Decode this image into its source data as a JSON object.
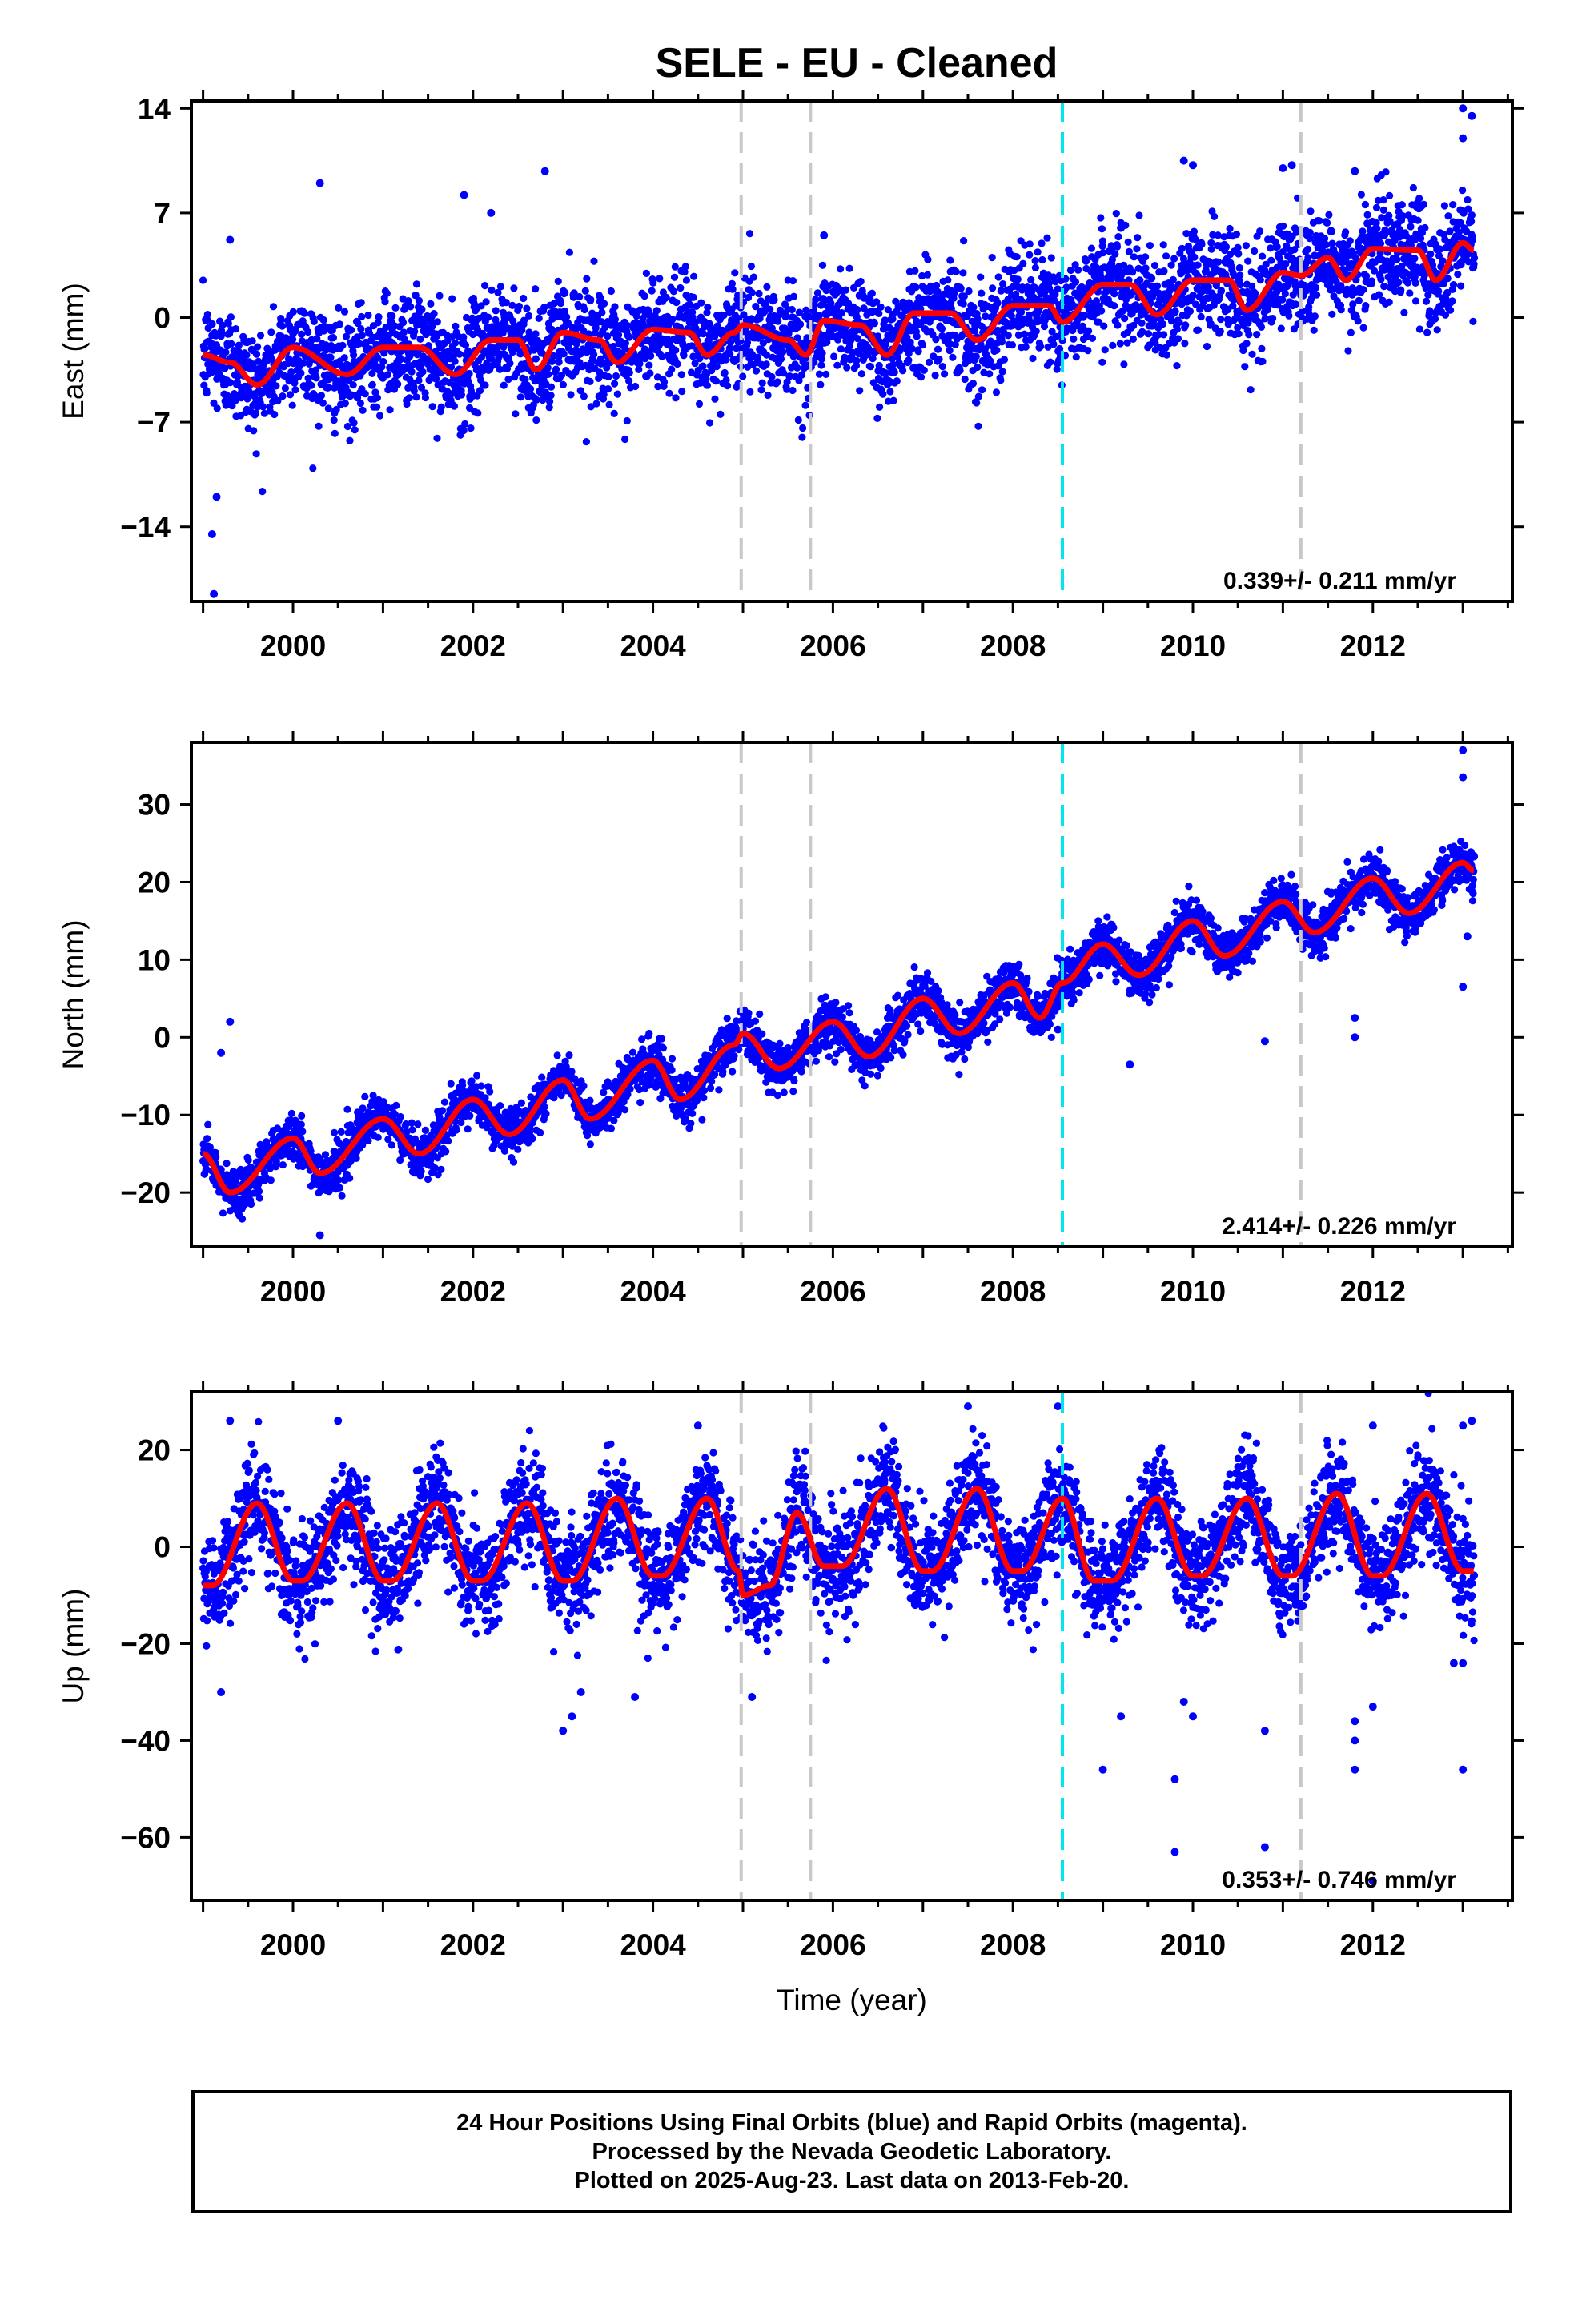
{
  "figure": {
    "title": "SELE  - EU - Cleaned",
    "x_axis_label": "Time (year)"
  },
  "footer": {
    "lines": [
      "24 Hour Positions Using Final Orbits (blue) and Rapid Orbits (magenta).",
      "Processed by the Nevada Geodetic Laboratory.",
      "Plotted on 2025-Aug-23. Last data on 2013-Feb-20."
    ]
  },
  "colors": {
    "data_points": "#0000ff",
    "model_fit": "#ff0000",
    "equipment_change": "#c8c8c8",
    "earthquake": "#00e5ee",
    "axes": "#000000"
  },
  "chart_data": [
    {
      "type": "scatter",
      "component": "east",
      "ylabel": "East (mm)",
      "ylim": [
        -19,
        14.5
      ],
      "yticks": [
        14,
        7,
        0,
        -7,
        -14
      ],
      "xlim": [
        1998.87,
        2013.55
      ],
      "xticks": [
        2000,
        2002,
        2004,
        2006,
        2008,
        2010,
        2012
      ],
      "rate_label": "0.339+/- 0.211 mm/yr",
      "rate": 0.339,
      "scatter_sd": 1.8,
      "anchors_x": [
        1999.0,
        1999.3,
        1999.6,
        2000.0,
        2000.6,
        2001.0,
        2001.4,
        2001.8,
        2002.2,
        2002.5,
        2002.7,
        2003.0,
        2003.4,
        2003.6,
        2004.0,
        2004.4,
        2004.6,
        2004.9,
        2005.0,
        2005.5,
        2005.7,
        2005.9,
        2006.3,
        2006.6,
        2006.9,
        2007.3,
        2007.6,
        2008.0,
        2008.4,
        2008.55,
        2009.0,
        2009.3,
        2009.6,
        2010.0,
        2010.4,
        2010.6,
        2011.0,
        2011.2,
        2011.5,
        2011.7,
        2012.0,
        2012.5,
        2012.7,
        2013.0,
        2013.12
      ],
      "anchors_y": [
        -2.5,
        -3.0,
        -4.5,
        -2.0,
        -3.8,
        -2.0,
        -2.0,
        -3.8,
        -1.5,
        -1.5,
        -3.5,
        -1.0,
        -1.5,
        -3.0,
        -0.8,
        -1.0,
        -2.5,
        -1.0,
        -0.5,
        -1.5,
        -2.5,
        -0.2,
        -0.5,
        -2.5,
        0.3,
        0.3,
        -1.5,
        0.8,
        0.8,
        -0.3,
        2.2,
        2.2,
        0.2,
        2.5,
        2.5,
        0.5,
        3.0,
        2.8,
        4.0,
        2.5,
        4.6,
        4.5,
        2.5,
        5.0,
        4.5
      ],
      "outliers": [
        [
          1999.1,
          -14.5
        ],
        [
          1999.15,
          -12
        ],
        [
          1999.12,
          -18.5
        ],
        [
          1999.3,
          5.2
        ],
        [
          2000.3,
          9
        ],
        [
          2001.9,
          8.2
        ],
        [
          2002.2,
          7
        ],
        [
          2002.8,
          9.8
        ],
        [
          2005.9,
          5.5
        ],
        [
          2009.2,
          6
        ],
        [
          2009.9,
          10.5
        ],
        [
          2010.0,
          10.2
        ],
        [
          2011.0,
          10
        ],
        [
          2011.1,
          10.2
        ],
        [
          2011.8,
          9.8
        ],
        [
          2013.0,
          14
        ],
        [
          2013.1,
          13.5
        ],
        [
          2013.0,
          12
        ]
      ],
      "offsets": {
        "equipment": [
          2004.98,
          2005.75,
          2011.2
        ],
        "earthquake": [
          2008.55
        ]
      }
    },
    {
      "type": "scatter",
      "component": "north",
      "ylabel": "North (mm)",
      "ylim": [
        -27,
        38
      ],
      "yticks": [
        30,
        20,
        10,
        0,
        -10,
        -20
      ],
      "xlim": [
        1998.87,
        2013.55
      ],
      "xticks": [
        2000,
        2002,
        2004,
        2006,
        2008,
        2010,
        2012
      ],
      "rate_label": "2.414+/- 0.226 mm/yr",
      "rate": 2.414,
      "scatter_sd": 1.5,
      "anchors_x": [
        1999.0,
        1999.3,
        2000.0,
        2000.3,
        2001.0,
        2001.4,
        2002.0,
        2002.4,
        2003.0,
        2003.3,
        2004.0,
        2004.3,
        2004.9,
        2005.0,
        2005.4,
        2006.0,
        2006.4,
        2007.0,
        2007.4,
        2008.0,
        2008.3,
        2008.55,
        2009.0,
        2009.4,
        2010.0,
        2010.35,
        2011.0,
        2011.35,
        2012.0,
        2012.4,
        2013.0,
        2013.12
      ],
      "anchors_y": [
        -15,
        -20,
        -13,
        -17.5,
        -10.5,
        -15,
        -8,
        -12.5,
        -5.5,
        -10.5,
        -3,
        -8,
        -1,
        0.5,
        -4,
        2,
        -2.5,
        5,
        0.5,
        7,
        2.5,
        7,
        12,
        8,
        15,
        10.5,
        17.5,
        13.5,
        20.5,
        16,
        22.5,
        21.5
      ],
      "outliers": [
        [
          1999.3,
          2
        ],
        [
          1999.2,
          -2
        ],
        [
          2000.3,
          -25.5
        ],
        [
          2008.5,
          1
        ],
        [
          2009.3,
          -3.5
        ],
        [
          2010.8,
          -0.5
        ],
        [
          2011.8,
          2.5
        ],
        [
          2011.8,
          0
        ],
        [
          2013.0,
          37
        ],
        [
          2013.0,
          33.5
        ],
        [
          2013.0,
          6.5
        ],
        [
          2013.05,
          13
        ]
      ],
      "offsets": {
        "equipment": [
          2004.98,
          2005.75,
          2011.2
        ],
        "earthquake": [
          2008.55
        ]
      }
    },
    {
      "type": "scatter",
      "component": "up",
      "ylabel": "Up (mm)",
      "ylim": [
        -73,
        32
      ],
      "yticks": [
        20,
        0,
        -20,
        -40,
        -60
      ],
      "xlim": [
        1998.87,
        2013.55
      ],
      "xticks": [
        2000,
        2002,
        2004,
        2006,
        2008,
        2010,
        2012
      ],
      "rate_label": "0.353+/- 0.746 mm/yr",
      "rate": 0.353,
      "scatter_sd": 5.5,
      "anchors_x": [
        1999.0,
        1999.1,
        1999.6,
        2000.0,
        2000.1,
        2000.6,
        2001.0,
        2001.1,
        2001.6,
        2002.0,
        2002.1,
        2002.6,
        2003.0,
        2003.1,
        2003.6,
        2004.0,
        2004.1,
        2004.6,
        2004.95,
        2005.0,
        2005.3,
        2005.6,
        2005.9,
        2006.1,
        2006.6,
        2007.0,
        2007.1,
        2007.6,
        2008.0,
        2008.1,
        2008.55,
        2008.9,
        2009.1,
        2009.6,
        2010.0,
        2010.1,
        2010.6,
        2011.0,
        2011.1,
        2011.6,
        2012.0,
        2012.1,
        2012.6,
        2013.0,
        2013.12
      ],
      "anchors_y": [
        -8,
        -8,
        9,
        -7,
        -7,
        9,
        -7,
        -7,
        9,
        -7,
        -7,
        9,
        -7,
        -7,
        10,
        -6,
        -6,
        10,
        -5,
        -10,
        -8,
        7,
        -4,
        -4,
        12,
        -5,
        -5,
        12,
        -5,
        -5,
        10,
        -7,
        -7,
        10,
        -6,
        -6,
        10,
        -6,
        -6,
        11,
        -6,
        -6,
        11,
        -5,
        -5
      ],
      "outliers": [
        [
          1999.3,
          26
        ],
        [
          1999.2,
          -30
        ],
        [
          2000.5,
          26
        ],
        [
          2003.0,
          -38
        ],
        [
          2003.1,
          -35
        ],
        [
          2003.2,
          -30
        ],
        [
          2003.8,
          -31
        ],
        [
          2004.5,
          25
        ],
        [
          2005.1,
          -31
        ],
        [
          2007.5,
          29
        ],
        [
          2008.5,
          29
        ],
        [
          2009.2,
          -35
        ],
        [
          2009.0,
          -46
        ],
        [
          2009.8,
          -48
        ],
        [
          2009.9,
          -32
        ],
        [
          2010.0,
          -35
        ],
        [
          2010.8,
          -38
        ],
        [
          2010.8,
          -62
        ],
        [
          2011.8,
          -36
        ],
        [
          2011.8,
          -40
        ],
        [
          2011.8,
          -46
        ],
        [
          2012.0,
          -69
        ],
        [
          2009.8,
          -63
        ],
        [
          2012.0,
          25
        ],
        [
          2013.0,
          25
        ],
        [
          2013.1,
          26
        ],
        [
          2013.0,
          -46
        ],
        [
          2013.0,
          -24
        ],
        [
          2012.9,
          -24
        ],
        [
          2012.0,
          -33
        ]
      ],
      "offsets": {
        "equipment": [
          2004.98,
          2005.75,
          2011.2
        ],
        "earthquake": [
          2008.55
        ]
      }
    }
  ]
}
